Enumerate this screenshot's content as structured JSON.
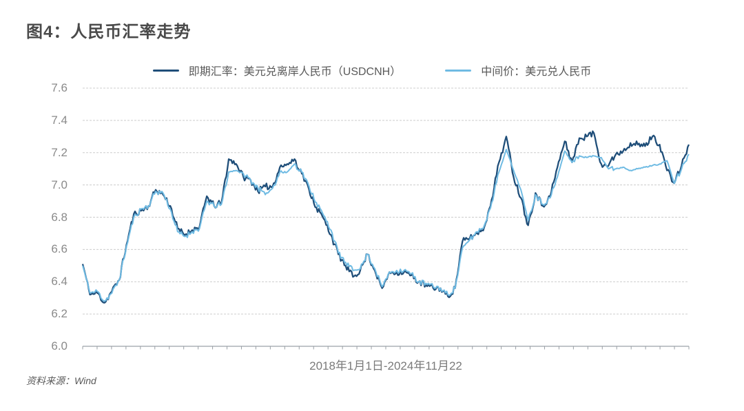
{
  "figure": {
    "title": "图4：人民币汇率走势",
    "x_axis_label": "2018年1月1日-2024年11月22",
    "source": "资料来源：Wind"
  },
  "legend": [
    {
      "label": "即期汇率：美元兑离岸人民币（USDCNH）",
      "color": "#1f4e79"
    },
    {
      "label": "中间价：美元兑人民币",
      "color": "#6fbbe3"
    }
  ],
  "chart_data": {
    "type": "line",
    "title": "图4：人民币汇率走势",
    "xlabel": "2018年1月1日-2024年11月22",
    "ylabel": "",
    "ylim": [
      6.0,
      7.6
    ],
    "y_ticks": [
      7.6,
      7.4,
      7.2,
      7.0,
      6.8,
      6.6,
      6.4,
      6.2,
      6.0
    ],
    "grid": true,
    "legend_position": "top",
    "source": "资料来源：Wind",
    "x": [
      "2018-01-02",
      "2018-01",
      "2018-02",
      "2018-03",
      "2018-04",
      "2018-05",
      "2018-06",
      "2018-07",
      "2018-08",
      "2018-09",
      "2018-10",
      "2018-11",
      "2018-12",
      "2019-01",
      "2019-02",
      "2019-03",
      "2019-04",
      "2019-05",
      "2019-06",
      "2019-07",
      "2019-08",
      "2019-09",
      "2019-10",
      "2019-11",
      "2019-12",
      "2020-01",
      "2020-02",
      "2020-03",
      "2020-04",
      "2020-05",
      "2020-06",
      "2020-07",
      "2020-08",
      "2020-09",
      "2020-10",
      "2020-11",
      "2020-12",
      "2021-01",
      "2021-02",
      "2021-03",
      "2021-04",
      "2021-05",
      "2021-06",
      "2021-07",
      "2021-08",
      "2021-09",
      "2021-10",
      "2021-11",
      "2021-12",
      "2022-01",
      "2022-02",
      "2022-03",
      "2022-04",
      "2022-05",
      "2022-06",
      "2022-07",
      "2022-08",
      "2022-09",
      "2022-10",
      "2022-11",
      "2022-12",
      "2023-01",
      "2023-02",
      "2023-03",
      "2023-04",
      "2023-05",
      "2023-06",
      "2023-07",
      "2023-08",
      "2023-09",
      "2023-10",
      "2023-11",
      "2023-12",
      "2024-01",
      "2024-02",
      "2024-03",
      "2024-04",
      "2024-05",
      "2024-06",
      "2024-07",
      "2024-08",
      "2024-09",
      "2024-10",
      "2024-11-22"
    ],
    "series": [
      {
        "name": "即期汇率：美元兑离岸人民币（USDCNH）",
        "color": "#1f4e79",
        "values": [
          6.51,
          6.32,
          6.33,
          6.27,
          6.34,
          6.41,
          6.63,
          6.82,
          6.84,
          6.87,
          6.97,
          6.94,
          6.87,
          6.73,
          6.69,
          6.72,
          6.74,
          6.93,
          6.87,
          6.89,
          7.16,
          7.13,
          7.05,
          7.03,
          6.96,
          6.99,
          6.99,
          7.11,
          7.13,
          7.16,
          7.07,
          6.97,
          6.86,
          6.79,
          6.69,
          6.57,
          6.5,
          6.43,
          6.47,
          6.57,
          6.47,
          6.36,
          6.46,
          6.46,
          6.46,
          6.44,
          6.4,
          6.38,
          6.36,
          6.36,
          6.31,
          6.36,
          6.65,
          6.67,
          6.7,
          6.74,
          6.91,
          7.14,
          7.3,
          7.05,
          6.92,
          6.75,
          6.95,
          6.87,
          6.93,
          7.11,
          7.27,
          7.14,
          7.29,
          7.3,
          7.32,
          7.13,
          7.12,
          7.19,
          7.21,
          7.26,
          7.25,
          7.24,
          7.3,
          7.25,
          7.09,
          7.01,
          7.12,
          7.25
        ]
      },
      {
        "name": "中间价：美元兑人民币",
        "color": "#6fbbe3",
        "values": [
          6.5,
          6.33,
          6.34,
          6.28,
          6.33,
          6.41,
          6.62,
          6.8,
          6.85,
          6.87,
          6.96,
          6.95,
          6.85,
          6.71,
          6.68,
          6.71,
          6.73,
          6.9,
          6.87,
          6.88,
          7.08,
          7.09,
          7.07,
          7.03,
          6.98,
          6.94,
          6.98,
          7.08,
          7.08,
          7.13,
          7.08,
          6.99,
          6.89,
          6.81,
          6.72,
          6.58,
          6.52,
          6.47,
          6.48,
          6.57,
          6.48,
          6.37,
          6.46,
          6.47,
          6.47,
          6.45,
          6.4,
          6.39,
          6.37,
          6.36,
          6.32,
          6.36,
          6.61,
          6.66,
          6.71,
          6.75,
          6.89,
          7.08,
          7.22,
          7.09,
          6.97,
          6.78,
          6.94,
          6.88,
          6.92,
          7.05,
          7.21,
          7.14,
          7.18,
          7.17,
          7.18,
          7.17,
          7.1,
          7.1,
          7.11,
          7.09,
          7.1,
          7.11,
          7.12,
          7.13,
          7.15,
          7.01,
          7.1,
          7.19
        ]
      }
    ]
  }
}
